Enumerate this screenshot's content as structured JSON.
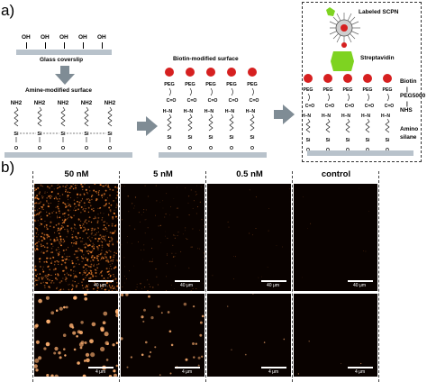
{
  "panel_a": {
    "label": "a)",
    "step1": {
      "top_group": "OH",
      "caption": "Glass coverslip"
    },
    "step2": {
      "title": "Amine-modified surface",
      "amine": "NH2",
      "silicon": "Si",
      "oxygen": "O"
    },
    "step3": {
      "title": "Biotin-modified surface",
      "peg": "PEG",
      "carbonyl": "C=O",
      "nh": "H–N",
      "silicon": "Si",
      "oxygen": "O"
    },
    "step4": {
      "scpn_label": "Labeled SCPN",
      "streptavidin_label": "Streptavidin",
      "legend": [
        "Biotin",
        "PEG5000",
        "NHS",
        "Amino silane"
      ]
    }
  },
  "panel_b": {
    "label": "b)",
    "columns": [
      "50 nM",
      "5 nM",
      "0.5 nM",
      "control"
    ],
    "scale_top": "40 μm",
    "scale_bottom": "4 μm"
  },
  "colors": {
    "surface": "#b8c2cb",
    "arrow": "#7f8c95",
    "biotin": "#d62020",
    "streptavidin": "#7ed321",
    "image_bg": "#090200",
    "spot": "#ffb070"
  }
}
